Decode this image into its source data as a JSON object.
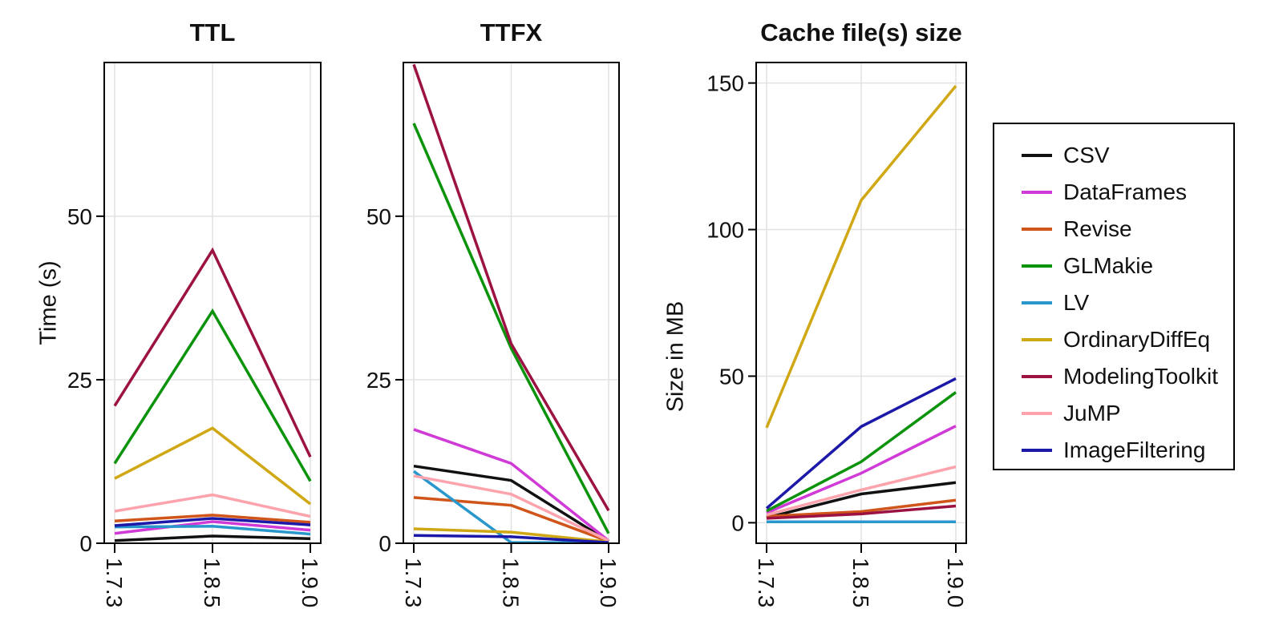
{
  "chart_data": [
    {
      "type": "line",
      "title": "TTL",
      "ylabel": "Time (s)",
      "x_categories": [
        "1.7.3",
        "1.8.5",
        "1.9.0"
      ],
      "yticks": [
        0,
        25,
        50
      ],
      "ylim": [
        0,
        73.5
      ],
      "grid": true,
      "series": [
        {
          "name": "CSV",
          "values": [
            0.4,
            1.1,
            0.7
          ]
        },
        {
          "name": "DataFrames",
          "values": [
            1.5,
            3.3,
            2.0
          ]
        },
        {
          "name": "Revise",
          "values": [
            3.4,
            4.3,
            3.2
          ]
        },
        {
          "name": "GLMakie",
          "values": [
            12.2,
            35.5,
            9.5
          ]
        },
        {
          "name": "LV",
          "values": [
            2.5,
            2.6,
            1.4
          ]
        },
        {
          "name": "OrdinaryDiffEq",
          "values": [
            9.9,
            17.6,
            6.0
          ]
        },
        {
          "name": "ModelingToolkit",
          "values": [
            21.0,
            44.8,
            13.2
          ]
        },
        {
          "name": "JuMP",
          "values": [
            4.9,
            7.4,
            4.1
          ]
        },
        {
          "name": "ImageFiltering",
          "values": [
            2.7,
            3.8,
            2.8
          ]
        }
      ]
    },
    {
      "type": "line",
      "title": "TTFX",
      "ylabel": "",
      "x_categories": [
        "1.7.3",
        "1.8.5",
        "1.9.0"
      ],
      "yticks": [
        0,
        25,
        50
      ],
      "ylim": [
        0,
        73.5
      ],
      "grid": true,
      "series": [
        {
          "name": "CSV",
          "values": [
            11.8,
            9.6,
            0.3
          ]
        },
        {
          "name": "DataFrames",
          "values": [
            17.4,
            12.2,
            0.4
          ]
        },
        {
          "name": "Revise",
          "values": [
            7.0,
            5.8,
            0.3
          ]
        },
        {
          "name": "GLMakie",
          "values": [
            64.2,
            29.8,
            1.5
          ]
        },
        {
          "name": "LV",
          "values": [
            11.0,
            0.1,
            0.1
          ]
        },
        {
          "name": "OrdinaryDiffEq",
          "values": [
            2.2,
            1.7,
            0.2
          ]
        },
        {
          "name": "ModelingToolkit",
          "values": [
            73.2,
            30.5,
            5.0
          ]
        },
        {
          "name": "JuMP",
          "values": [
            10.3,
            7.5,
            0.4
          ]
        },
        {
          "name": "ImageFiltering",
          "values": [
            1.2,
            1.0,
            0.1
          ]
        }
      ]
    },
    {
      "type": "line",
      "title": "Cache file(s) size",
      "ylabel": "Size in MB",
      "x_categories": [
        "1.7.3",
        "1.8.5",
        "1.9.0"
      ],
      "yticks": [
        0,
        50,
        100,
        150
      ],
      "ylim": [
        -7,
        157
      ],
      "grid": true,
      "series": [
        {
          "name": "CSV",
          "values": [
            1.7,
            9.8,
            13.7
          ]
        },
        {
          "name": "DataFrames",
          "values": [
            3.4,
            16.9,
            33.0
          ]
        },
        {
          "name": "Revise",
          "values": [
            2.2,
            3.8,
            7.7
          ]
        },
        {
          "name": "GLMakie",
          "values": [
            4.0,
            20.8,
            44.5
          ]
        },
        {
          "name": "LV",
          "values": [
            0.3,
            0.3,
            0.3
          ]
        },
        {
          "name": "OrdinaryDiffEq",
          "values": [
            32.4,
            110.0,
            149.0
          ]
        },
        {
          "name": "ModelingToolkit",
          "values": [
            1.5,
            3.0,
            5.7
          ]
        },
        {
          "name": "JuMP",
          "values": [
            2.7,
            11.2,
            19.1
          ]
        },
        {
          "name": "ImageFiltering",
          "values": [
            4.9,
            32.8,
            49.2
          ]
        }
      ]
    }
  ],
  "legend": {
    "position": "right",
    "entries": [
      {
        "label": "CSV",
        "color": "#111111"
      },
      {
        "label": "DataFrames",
        "color": "#d03ad6"
      },
      {
        "label": "Revise",
        "color": "#d0551a"
      },
      {
        "label": "GLMakie",
        "color": "#0c930c"
      },
      {
        "label": "LV",
        "color": "#2a97cc"
      },
      {
        "label": "OrdinaryDiffEq",
        "color": "#d0a816"
      },
      {
        "label": "ModelingToolkit",
        "color": "#9c1243"
      },
      {
        "label": "JuMP",
        "color": "#fda3ad"
      },
      {
        "label": "ImageFiltering",
        "color": "#1c18a8"
      }
    ]
  },
  "style_colors": {
    "grid": "#e2e2e2",
    "frame": "#000000",
    "text": "#111111"
  }
}
